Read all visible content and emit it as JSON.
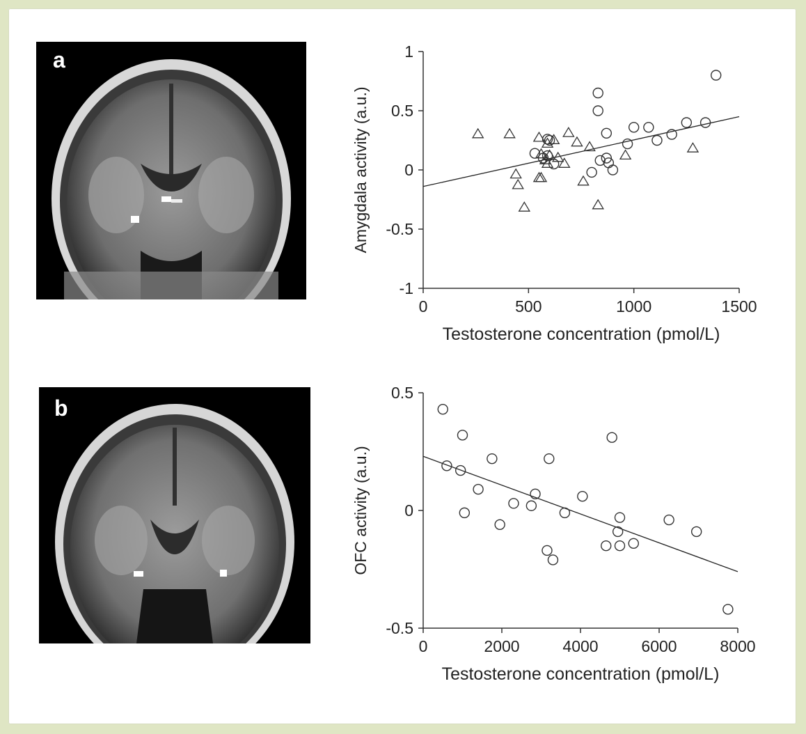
{
  "panels": [
    {
      "letter": "a"
    },
    {
      "letter": "b"
    }
  ],
  "chart_data": [
    {
      "type": "scatter",
      "xlabel": "Testosterone concentration (pmol/L)",
      "ylabel": "Amygdala activity (a.u.)",
      "xlim": [
        0,
        1500
      ],
      "ylim": [
        -1,
        1
      ],
      "xticks": [
        0,
        500,
        1000,
        1500
      ],
      "yticks": [
        -1,
        -0.5,
        0,
        0.5,
        1
      ],
      "ytick_labels": [
        "-1",
        "-0.5",
        "0",
        "0.5",
        "1"
      ],
      "grid": false,
      "series": [
        {
          "marker": "circle",
          "points": [
            [
              1390,
              0.8
            ],
            [
              830,
              0.65
            ],
            [
              830,
              0.5
            ],
            [
              1340,
              0.4
            ],
            [
              1250,
              0.4
            ],
            [
              1000,
              0.36
            ],
            [
              1070,
              0.36
            ],
            [
              1180,
              0.3
            ],
            [
              870,
              0.31
            ],
            [
              1110,
              0.25
            ],
            [
              970,
              0.22
            ],
            [
              590,
              0.26
            ],
            [
              600,
              0.25
            ],
            [
              530,
              0.14
            ],
            [
              590,
              0.12
            ],
            [
              570,
              0.1
            ],
            [
              620,
              0.05
            ],
            [
              870,
              0.1
            ],
            [
              840,
              0.08
            ],
            [
              880,
              0.06
            ],
            [
              900,
              0.0
            ],
            [
              800,
              -0.02
            ]
          ]
        },
        {
          "marker": "triangle",
          "points": [
            [
              260,
              0.3
            ],
            [
              410,
              0.3
            ],
            [
              550,
              0.27
            ],
            [
              620,
              0.25
            ],
            [
              690,
              0.31
            ],
            [
              730,
              0.23
            ],
            [
              790,
              0.19
            ],
            [
              590,
              0.22
            ],
            [
              560,
              0.13
            ],
            [
              600,
              0.12
            ],
            [
              580,
              0.08
            ],
            [
              590,
              0.05
            ],
            [
              640,
              0.1
            ],
            [
              670,
              0.05
            ],
            [
              960,
              0.12
            ],
            [
              1280,
              0.18
            ],
            [
              440,
              -0.04
            ],
            [
              450,
              -0.13
            ],
            [
              550,
              -0.07
            ],
            [
              560,
              -0.07
            ],
            [
              760,
              -0.1
            ],
            [
              480,
              -0.32
            ],
            [
              830,
              -0.3
            ]
          ]
        }
      ],
      "fit": [
        [
          0,
          -0.14
        ],
        [
          1500,
          0.45
        ]
      ]
    },
    {
      "type": "scatter",
      "xlabel": "Testosterone concentration (pmol/L)",
      "ylabel": "OFC activity (a.u.)",
      "xlim": [
        0,
        8000
      ],
      "ylim": [
        -0.5,
        0.5
      ],
      "xticks": [
        0,
        2000,
        4000,
        6000,
        8000
      ],
      "yticks": [
        -0.5,
        0,
        0.5
      ],
      "ytick_labels": [
        "-0.5",
        "0",
        "0.5"
      ],
      "grid": false,
      "series": [
        {
          "marker": "circle",
          "points": [
            [
              500,
              0.43
            ],
            [
              1000,
              0.32
            ],
            [
              600,
              0.19
            ],
            [
              950,
              0.17
            ],
            [
              1750,
              0.22
            ],
            [
              3200,
              0.22
            ],
            [
              4800,
              0.31
            ],
            [
              1400,
              0.09
            ],
            [
              2850,
              0.07
            ],
            [
              4050,
              0.06
            ],
            [
              2300,
              0.03
            ],
            [
              2750,
              0.02
            ],
            [
              1050,
              -0.01
            ],
            [
              3600,
              -0.01
            ],
            [
              1950,
              -0.06
            ],
            [
              5000,
              -0.03
            ],
            [
              4950,
              -0.09
            ],
            [
              6250,
              -0.04
            ],
            [
              6950,
              -0.09
            ],
            [
              3150,
              -0.17
            ],
            [
              3300,
              -0.21
            ],
            [
              4650,
              -0.15
            ],
            [
              5000,
              -0.15
            ],
            [
              5350,
              -0.14
            ],
            [
              7750,
              -0.42
            ]
          ]
        }
      ],
      "fit": [
        [
          0,
          0.23
        ],
        [
          8000,
          -0.26
        ]
      ]
    }
  ]
}
